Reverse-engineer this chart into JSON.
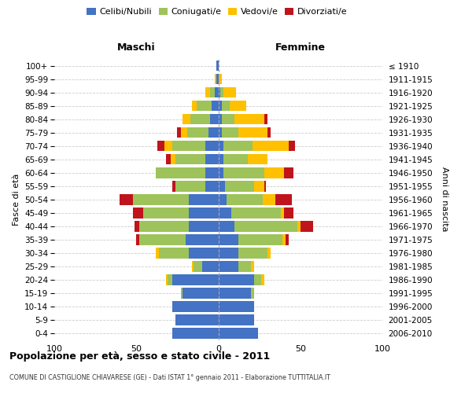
{
  "age_groups": [
    "0-4",
    "5-9",
    "10-14",
    "15-19",
    "20-24",
    "25-29",
    "30-34",
    "35-39",
    "40-44",
    "45-49",
    "50-54",
    "55-59",
    "60-64",
    "65-69",
    "70-74",
    "75-79",
    "80-84",
    "85-89",
    "90-94",
    "95-99",
    "100+"
  ],
  "birth_years": [
    "2006-2010",
    "2001-2005",
    "1996-2000",
    "1991-1995",
    "1986-1990",
    "1981-1985",
    "1976-1980",
    "1971-1975",
    "1966-1970",
    "1961-1965",
    "1956-1960",
    "1951-1955",
    "1946-1950",
    "1941-1945",
    "1936-1940",
    "1931-1935",
    "1926-1930",
    "1921-1925",
    "1916-1920",
    "1911-1915",
    "≤ 1910"
  ],
  "males_celibe": [
    28,
    26,
    28,
    22,
    28,
    10,
    18,
    20,
    18,
    18,
    18,
    8,
    8,
    8,
    8,
    6,
    5,
    4,
    2,
    1,
    1
  ],
  "males_coniugato": [
    0,
    0,
    0,
    1,
    3,
    5,
    18,
    28,
    30,
    28,
    34,
    18,
    30,
    18,
    20,
    13,
    12,
    9,
    3,
    0,
    0
  ],
  "males_vedovo": [
    0,
    0,
    0,
    0,
    1,
    1,
    2,
    0,
    0,
    0,
    0,
    0,
    0,
    3,
    5,
    4,
    5,
    3,
    3,
    1,
    0
  ],
  "males_divorziato": [
    0,
    0,
    0,
    0,
    0,
    0,
    0,
    2,
    3,
    6,
    8,
    2,
    0,
    3,
    4,
    2,
    0,
    0,
    0,
    0,
    0
  ],
  "females_nubile": [
    24,
    22,
    22,
    20,
    22,
    12,
    12,
    12,
    10,
    8,
    5,
    4,
    3,
    3,
    3,
    2,
    2,
    2,
    1,
    0,
    0
  ],
  "females_coniugata": [
    0,
    0,
    0,
    2,
    4,
    8,
    18,
    27,
    38,
    30,
    22,
    18,
    25,
    15,
    18,
    10,
    8,
    5,
    2,
    0,
    0
  ],
  "females_vedova": [
    0,
    0,
    0,
    0,
    2,
    2,
    2,
    2,
    2,
    2,
    8,
    6,
    12,
    12,
    22,
    18,
    18,
    10,
    8,
    2,
    0
  ],
  "females_divorziata": [
    0,
    0,
    0,
    0,
    0,
    0,
    0,
    2,
    8,
    6,
    10,
    1,
    6,
    0,
    4,
    2,
    2,
    0,
    0,
    0,
    0
  ],
  "color_celibe": "#4472c4",
  "color_coniugato": "#9dc35a",
  "color_vedovo": "#ffc000",
  "color_divorziato": "#c0141c",
  "title": "Popolazione per età, sesso e stato civile - 2011",
  "subtitle": "COMUNE DI CASTIGLIONE CHIAVARESE (GE) - Dati ISTAT 1° gennaio 2011 - Elaborazione TUTTITALIA.IT",
  "header_left": "Maschi",
  "header_right": "Femmine",
  "ylabel_left": "Fasce di età",
  "ylabel_right": "Anni di nascita",
  "xlim": 100,
  "bg_color": "#ffffff",
  "grid_color": "#cccccc",
  "legend_labels": [
    "Celibi/Nubili",
    "Coniugati/e",
    "Vedovi/e",
    "Divorziati/e"
  ]
}
